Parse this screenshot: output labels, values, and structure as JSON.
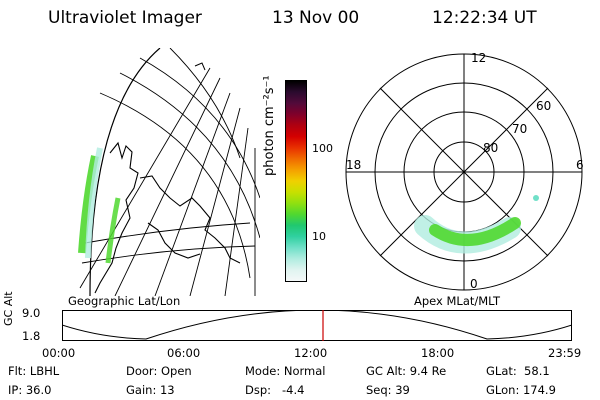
{
  "header": {
    "instrument": "Ultraviolet Imager",
    "date": "13 Nov 00",
    "time": "12:22:34 UT"
  },
  "geo_panel": {
    "label": "Geographic Lat/Lon"
  },
  "polar_panel": {
    "label": "Apex MLat/MLT",
    "mlt_labels": {
      "top": "12",
      "left": "18",
      "right": "6",
      "bottom": "0"
    },
    "lat_labels": [
      "60",
      "70",
      "80"
    ]
  },
  "colorbar": {
    "unit": "photon cm⁻²s⁻¹",
    "ticks": [
      "100",
      "10"
    ],
    "colors": [
      "#000000",
      "#2b0a2e",
      "#520a3a",
      "#80002a",
      "#b00010",
      "#d40000",
      "#e83000",
      "#f06a00",
      "#f5a000",
      "#f0d000",
      "#c8e000",
      "#90e010",
      "#50d830",
      "#20c870",
      "#30d0a0",
      "#70e0c8",
      "#b0ece0",
      "#e0f4f0",
      "#f4f8f8"
    ]
  },
  "timeline": {
    "axis_label": "GC Alt",
    "y_ticks": [
      "9.0",
      "1.8"
    ],
    "x_ticks": [
      "00:00",
      "06:00",
      "12:00",
      "18:00",
      "23:59"
    ],
    "marker_color": "#cc0000"
  },
  "status": {
    "flt": "Flt: LBHL",
    "ip": "IP: 36.0",
    "door": "Door: Open",
    "gain": "Gain: 13",
    "mode": "Mode: Normal",
    "dsp": "Dsp:   -4.4",
    "gcalt": "GC Alt: 9.4 Re",
    "seq": "Seq: 39",
    "glat": "GLat:  58.1",
    "glon": "GLon: 174.9"
  }
}
